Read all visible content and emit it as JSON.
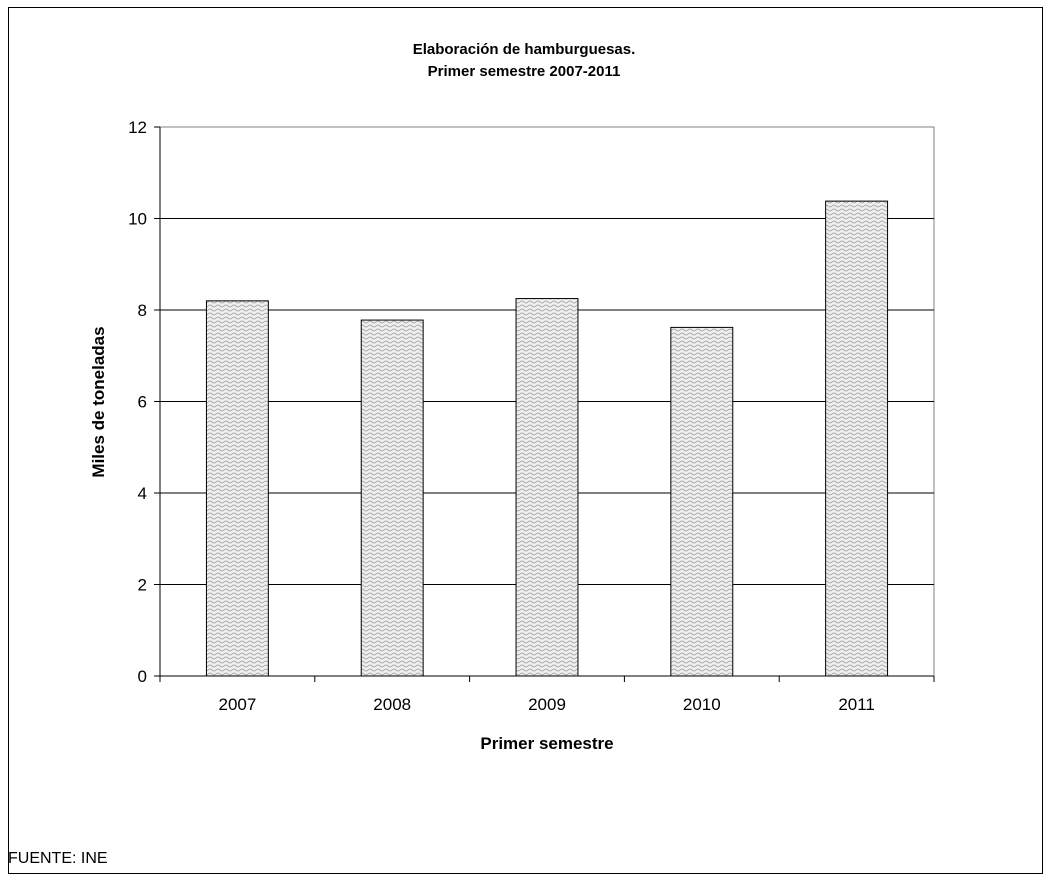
{
  "chart_data": {
    "type": "bar",
    "title": "Elaboración  de hamburguesas.",
    "subtitle": "Primer semestre 2007-2011",
    "xlabel": "Primer semestre",
    "ylabel": "Miles de toneladas",
    "categories": [
      "2007",
      "2008",
      "2009",
      "2010",
      "2011"
    ],
    "values": [
      8.2,
      7.78,
      8.25,
      7.62,
      10.38
    ],
    "ylim": [
      0,
      12
    ],
    "yticks": [
      "0",
      "2",
      "4",
      "6",
      "8",
      "10",
      "12"
    ],
    "grid": true,
    "legend": "none",
    "bar_pattern": "wavy"
  },
  "source": "FUENTE: INE",
  "colors": {
    "bar_fill": "#eeeeee",
    "bar_pattern": "#9a9a9a",
    "bar_border": "#000000",
    "grid": "#000000",
    "plot_border": "#808080",
    "frame_border": "#000000"
  }
}
